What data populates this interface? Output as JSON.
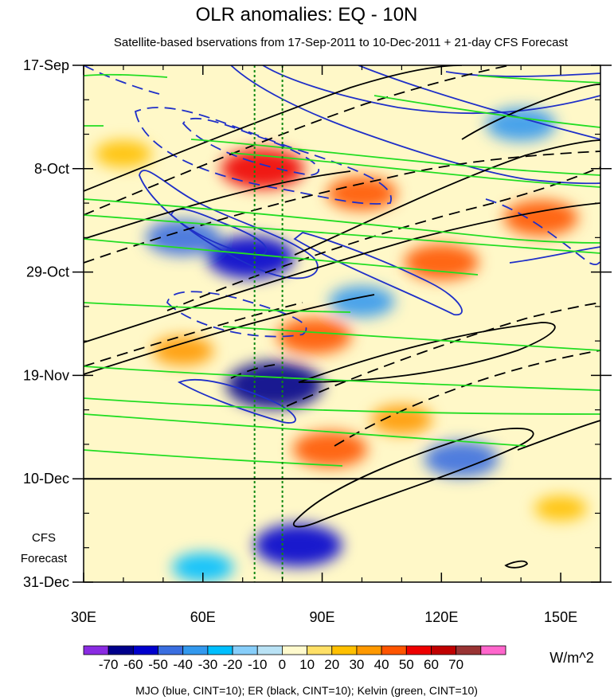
{
  "chart_data": {
    "type": "heatmap",
    "title": "OLR anomalies: EQ - 10N",
    "subtitle": "Satellite-based bservations from 17-Sep-2011 to 10-Dec-2011 + 21-day CFS Forecast",
    "x_ticks": [
      {
        "label": "30E",
        "lon": 30
      },
      {
        "label": "60E",
        "lon": 60
      },
      {
        "label": "90E",
        "lon": 90
      },
      {
        "label": "120E",
        "lon": 120
      },
      {
        "label": "150E",
        "lon": 150
      }
    ],
    "xlim": [
      30,
      160
    ],
    "y_ticks": [
      {
        "label": "17-Sep",
        "day": 0
      },
      {
        "label": "8-Oct",
        "day": 21
      },
      {
        "label": "29-Oct",
        "day": 42
      },
      {
        "label": "19-Nov",
        "day": 63
      },
      {
        "label": "10-Dec",
        "day": 84
      },
      {
        "label": "31-Dec",
        "day": 105
      }
    ],
    "ylim": [
      0,
      105
    ],
    "forecast_start_day": 84,
    "forecast_label": [
      "CFS",
      "Forecast"
    ],
    "reference_lons": [
      73,
      80
    ],
    "colorbar": {
      "unit": "W/m^2",
      "tick_labels": [
        "-70",
        "-60",
        "-50",
        "-40",
        "-30",
        "-20",
        "-10",
        "0",
        "10",
        "20",
        "30",
        "40",
        "50",
        "60",
        "70"
      ],
      "colors": [
        "#8a2be2",
        "#00008b",
        "#0000cd",
        "#3a6ee0",
        "#3399ee",
        "#00bfff",
        "#87cefa",
        "#b9e2f5",
        "#fffacd",
        "#ffe066",
        "#ffc000",
        "#ff9900",
        "#ff5500",
        "#ee0000",
        "#c00000",
        "#993333",
        "#ff66cc"
      ]
    },
    "footer": "MJO (blue, CINT=10); ER (black, CINT=10); Kelvin (green, CINT=10)",
    "contour_colors": {
      "mjo": "#1f2fc8",
      "er": "#000000",
      "kelvin": "#22dd22"
    },
    "anomaly_features": [
      {
        "lon": 78,
        "day": 65,
        "value": -70
      },
      {
        "lon": 72,
        "day": 39,
        "value": -60
      },
      {
        "lon": 55,
        "day": 35,
        "value": -45
      },
      {
        "lon": 84,
        "day": 97.5,
        "value": -60
      },
      {
        "lon": 140,
        "day": 12,
        "value": -40
      },
      {
        "lon": 125,
        "day": 80,
        "value": -45
      },
      {
        "lon": 100,
        "day": 48,
        "value": -35
      },
      {
        "lon": 60,
        "day": 102,
        "value": -30
      },
      {
        "lon": 75,
        "day": 21,
        "value": 55
      },
      {
        "lon": 88,
        "day": 55,
        "value": 45
      },
      {
        "lon": 120,
        "day": 40,
        "value": 45
      },
      {
        "lon": 145,
        "day": 31,
        "value": 45
      },
      {
        "lon": 100,
        "day": 26,
        "value": 40
      },
      {
        "lon": 92,
        "day": 78,
        "value": 45
      },
      {
        "lon": 55,
        "day": 58,
        "value": 30
      },
      {
        "lon": 110,
        "day": 72,
        "value": 30
      },
      {
        "lon": 150,
        "day": 90,
        "value": 20
      },
      {
        "lon": 40,
        "day": 18,
        "value": 25
      }
    ]
  }
}
